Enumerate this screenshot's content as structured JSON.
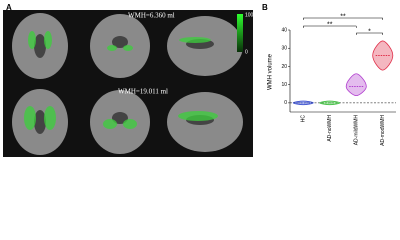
{
  "panel_a": {
    "label": "A",
    "row1_volume": "WMH=6.360 ml",
    "row2_volume": "WMH=19.011 ml",
    "colorbar_max": "100",
    "colorbar_min": "0"
  },
  "chart_data": {
    "type": "violin",
    "label": "B",
    "y_label": "WMH volume",
    "categories": [
      "HC",
      "AD-noWMH",
      "AD-mildWMH",
      "AD-modWMH"
    ],
    "values": [
      0,
      0,
      9,
      26
    ],
    "low": [
      -1,
      -1,
      4,
      18
    ],
    "high": [
      1,
      1,
      16,
      34
    ],
    "colors": [
      "#3a4fd0",
      "#3fbf3f",
      "#b13fcf",
      "#e0304a"
    ],
    "ylim": [
      -5,
      40
    ],
    "yticks": [
      0,
      10,
      20,
      30,
      40
    ],
    "zero_line": true,
    "annotations": [
      {
        "text": "**",
        "from": 0,
        "to": 3
      },
      {
        "text": "**",
        "from": 0,
        "to": 2
      },
      {
        "text": "*",
        "from": 2,
        "to": 3
      }
    ]
  }
}
